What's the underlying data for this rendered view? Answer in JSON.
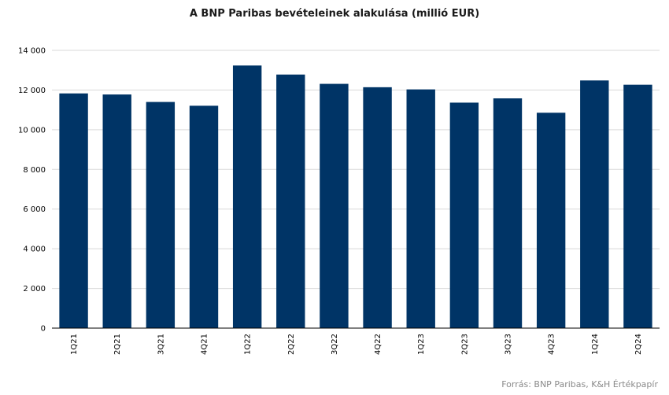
{
  "chart_data": {
    "type": "bar",
    "title": "A BNP Paribas bevételeinek  alakulása (millió EUR)",
    "categories": [
      "1Q21",
      "2Q21",
      "3Q21",
      "4Q21",
      "1Q22",
      "2Q22",
      "3Q22",
      "4Q22",
      "1Q23",
      "2Q23",
      "3Q23",
      "4Q23",
      "1Q24",
      "2Q24"
    ],
    "values": [
      11830,
      11776,
      11399,
      11208,
      13236,
      12781,
      12312,
      12142,
      12032,
      11365,
      11581,
      10856,
      12483,
      12268
    ],
    "ylim": [
      0,
      14000
    ],
    "yticks": [
      "0",
      "2 000",
      "4 000",
      "6 000",
      "8 000",
      "10 000",
      "12 000",
      "14 000"
    ],
    "grid": true,
    "bar_color": "#003466",
    "source": "Forrás: BNP Paribas, K&H Értékpapír"
  }
}
